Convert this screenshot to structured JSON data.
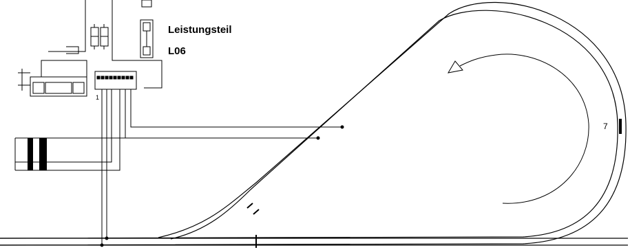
{
  "module": {
    "title": "Leistungsteil",
    "code": "L06",
    "connector_pin_label": "1"
  },
  "track": {
    "section_number": "7"
  },
  "colors": {
    "line": "#000000",
    "background": "#ffffff"
  }
}
